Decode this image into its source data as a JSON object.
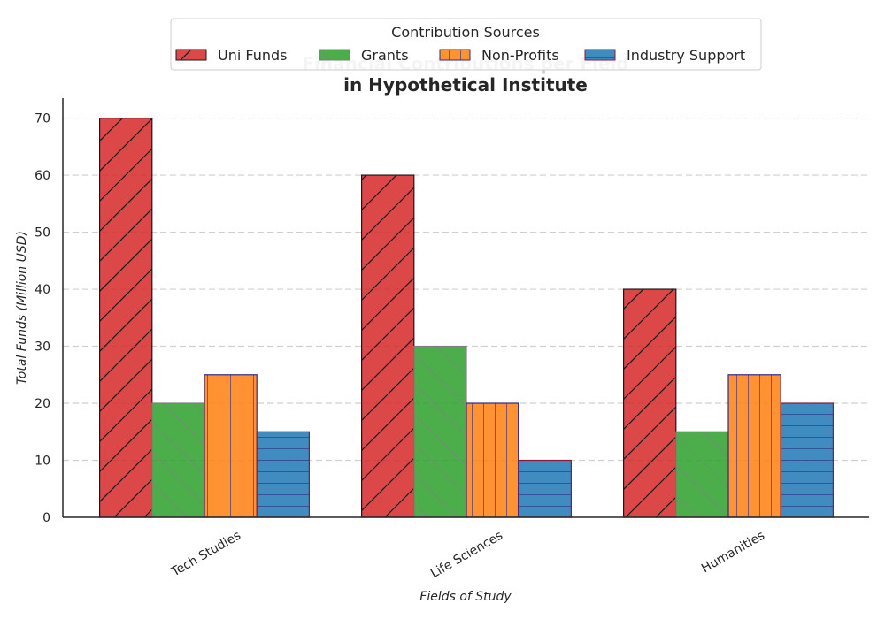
{
  "chart_data": {
    "type": "bar",
    "title_line1": "Financial Contributions per Field",
    "title_line2": "in Hypothetical Institute",
    "xlabel": "Fields of Study",
    "ylabel": "Total Funds (Million USD)",
    "categories": [
      "Tech Studies",
      "Life Sciences",
      "Humanities"
    ],
    "ylim": [
      0,
      73.5
    ],
    "yticks": [
      0,
      10,
      20,
      30,
      40,
      50,
      60,
      70
    ],
    "grid": "y dashed",
    "legend": {
      "title": "Contribution Sources",
      "placement": "top-center"
    },
    "series": [
      {
        "name": "Uni Funds",
        "values": [
          70,
          60,
          40
        ],
        "color": "#d62728",
        "edge": "#1a1a1a",
        "hatch": "diagonal"
      },
      {
        "name": "Grants",
        "values": [
          20,
          30,
          15
        ],
        "color": "#2ca02c",
        "edge": "#7f7f7f",
        "hatch": "backslash"
      },
      {
        "name": "Non-Profits",
        "values": [
          25,
          20,
          25
        ],
        "color": "#ff7f0e",
        "edge": "#2b2b8c",
        "hatch": "vertical"
      },
      {
        "name": "Industry Support",
        "values": [
          15,
          10,
          20
        ],
        "color": "#1f77b4",
        "edge": "#8b1a3a",
        "hatch": "horizontal"
      }
    ]
  }
}
